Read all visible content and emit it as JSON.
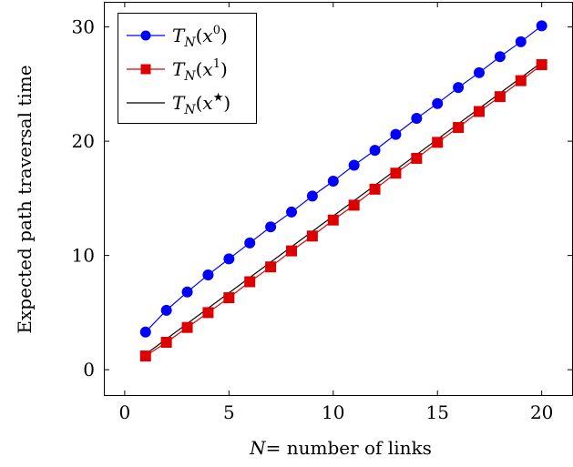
{
  "chart_data": {
    "type": "line",
    "title": "",
    "xlabel": "N= number of links",
    "xlabel_parts": {
      "var": "N",
      "rest": "= number of links"
    },
    "ylabel": "Expected path traversal time",
    "xlim": [
      -1,
      21.5
    ],
    "ylim": [
      -2.3,
      32.2
    ],
    "xticks": [
      0,
      5,
      10,
      15,
      20
    ],
    "yticks": [
      0,
      10,
      20,
      30
    ],
    "xtick_labels": [
      "0",
      "5",
      "10",
      "15",
      "20"
    ],
    "ytick_labels": [
      "0",
      "10",
      "20",
      "30"
    ],
    "grid": false,
    "legend_position": "top-left",
    "series": [
      {
        "name": "T_N(x^0)",
        "legend": {
          "base": "T",
          "sub": "N",
          "arg": "x",
          "sup": "0"
        },
        "color": "#0000ff",
        "marker": "circle",
        "x": [
          1,
          2,
          3,
          4,
          5,
          6,
          7,
          8,
          9,
          10,
          11,
          12,
          13,
          14,
          15,
          16,
          17,
          18,
          19,
          20
        ],
        "values": [
          3.3,
          5.2,
          6.8,
          8.3,
          9.7,
          11.1,
          12.5,
          13.8,
          15.2,
          16.5,
          17.9,
          19.2,
          20.6,
          22.0,
          23.3,
          24.7,
          26.0,
          27.4,
          28.7,
          30.1
        ]
      },
      {
        "name": "T_N(x^1)",
        "legend": {
          "base": "T",
          "sub": "N",
          "arg": "x",
          "sup": "1"
        },
        "color": "#dd0000",
        "marker": "square",
        "x": [
          1,
          2,
          3,
          4,
          5,
          6,
          7,
          8,
          9,
          10,
          11,
          12,
          13,
          14,
          15,
          16,
          17,
          18,
          19,
          20
        ],
        "values": [
          1.2,
          2.4,
          3.7,
          5.0,
          6.3,
          7.7,
          9.0,
          10.4,
          11.7,
          13.1,
          14.4,
          15.8,
          17.2,
          18.5,
          19.9,
          21.2,
          22.6,
          23.9,
          25.3,
          26.7
        ]
      },
      {
        "name": "T_N(x^★)",
        "legend": {
          "base": "T",
          "sub": "N",
          "arg": "x",
          "sup": "★"
        },
        "color": "#000000",
        "marker": "none",
        "x": [
          1,
          20
        ],
        "values": [
          1.35,
          26.9
        ]
      }
    ]
  }
}
